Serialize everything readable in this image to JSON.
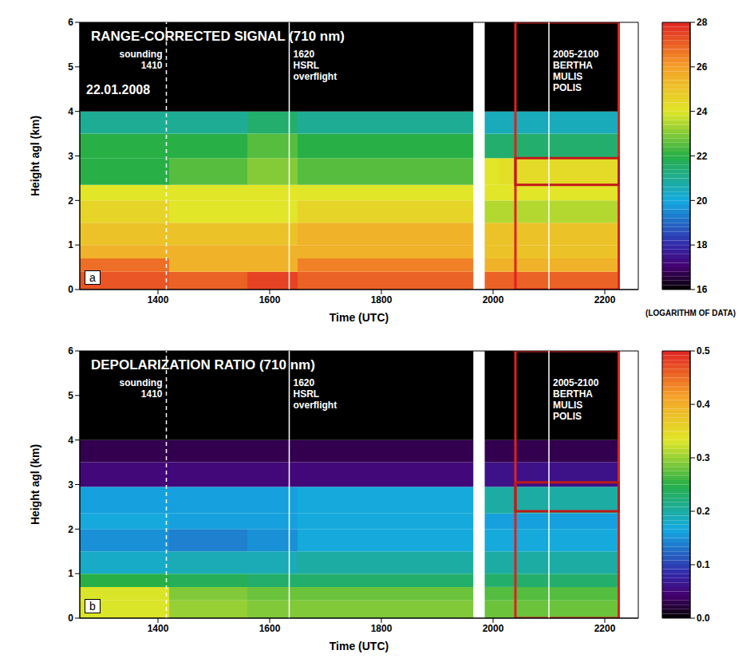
{
  "chart_data": [
    {
      "type": "heatmap",
      "panel": "a",
      "title": "RANGE-CORRECTED SIGNAL (710 nm)",
      "annotation": "22.01.2008",
      "x_label": "Time (UTC)",
      "y_label": "Height agl (km)",
      "xlim": [
        1260,
        2260
      ],
      "xticks": [
        1400,
        1600,
        1800,
        2000,
        2200
      ],
      "ylim": [
        0,
        6
      ],
      "yticks": [
        0,
        1,
        2,
        3,
        4,
        5,
        6
      ],
      "grid": false,
      "x_edges": [
        1260,
        1420,
        1560,
        1650,
        1965,
        1985,
        2010,
        2040,
        2225
      ],
      "y_edges": [
        0,
        0.4,
        0.7,
        1.0,
        1.5,
        2.0,
        2.35,
        2.95,
        3.5,
        4.0,
        6.0
      ],
      "cells": [
        [
          27.2,
          27,
          27.5,
          27,
          null,
          27,
          27,
          27
        ],
        [
          26.8,
          25.5,
          25.5,
          26.5,
          null,
          25.5,
          25.5,
          25.5
        ],
        [
          25.5,
          25.5,
          25.5,
          25.5,
          null,
          25,
          25,
          25
        ],
        [
          25,
          25,
          25,
          25.5,
          null,
          25,
          25,
          25
        ],
        [
          24.5,
          24,
          24,
          24.5,
          null,
          23.5,
          23.5,
          23.5
        ],
        [
          24,
          24,
          24,
          24,
          null,
          24,
          24,
          24
        ],
        [
          22,
          22.5,
          23,
          22.5,
          null,
          24,
          24.2,
          24.3
        ],
        [
          22,
          22,
          22.5,
          22,
          null,
          21.5,
          21.5,
          21.5
        ],
        [
          21,
          21,
          21.5,
          21,
          null,
          20.5,
          20.5,
          20.5
        ],
        [
          16,
          16,
          16,
          16,
          null,
          16,
          16,
          16
        ]
      ],
      "colorbar": {
        "range": [
          16,
          28
        ],
        "ticks": [
          16,
          18,
          20,
          22,
          24,
          26,
          28
        ],
        "label": "(LOGARITHM OF DATA)"
      },
      "events": [
        {
          "x": 1415,
          "label": [
            "sounding",
            "1410"
          ],
          "line_style": "dashed"
        },
        {
          "x": 1635,
          "label": [
            "1620",
            "HSRL",
            "overflight"
          ],
          "line_style": "solid"
        },
        {
          "x": 2100,
          "label": [
            "2005-2100",
            "BERTHA",
            "MULIS",
            "POLIS"
          ],
          "line_style": "solid"
        }
      ],
      "highlight_boxes": [
        {
          "x": [
            2040,
            2225
          ],
          "y": [
            0,
            6
          ],
          "color": "#e02020"
        },
        {
          "x": [
            2040,
            2225
          ],
          "y": [
            2.35,
            2.95
          ],
          "color": "#c01818"
        }
      ]
    },
    {
      "type": "heatmap",
      "panel": "b",
      "title": "DEPOLARIZATION RATIO (710 nm)",
      "x_label": "Time (UTC)",
      "y_label": "Height agl (km)",
      "xlim": [
        1260,
        2260
      ],
      "xticks": [
        1400,
        1600,
        1800,
        2000,
        2200
      ],
      "ylim": [
        0,
        6
      ],
      "yticks": [
        0,
        1,
        2,
        3,
        4,
        5,
        6
      ],
      "grid": false,
      "x_edges": [
        1260,
        1420,
        1560,
        1650,
        1965,
        1985,
        2010,
        2040,
        2225
      ],
      "y_edges": [
        0,
        0.4,
        0.7,
        1.0,
        1.5,
        2.0,
        2.35,
        2.95,
        3.5,
        4.0,
        6.0
      ],
      "cells": [
        [
          0.33,
          0.3,
          0.29,
          0.29,
          null,
          0.28,
          0.28,
          0.28
        ],
        [
          0.33,
          0.29,
          0.28,
          0.28,
          null,
          0.27,
          0.27,
          0.27
        ],
        [
          0.25,
          0.24,
          0.23,
          0.23,
          null,
          0.23,
          0.23,
          0.23
        ],
        [
          0.18,
          0.19,
          0.19,
          0.2,
          null,
          0.2,
          0.2,
          0.2
        ],
        [
          0.15,
          0.14,
          0.15,
          0.17,
          null,
          0.17,
          0.17,
          0.17
        ],
        [
          0.17,
          0.16,
          0.16,
          0.17,
          null,
          0.16,
          0.16,
          0.16
        ],
        [
          0.16,
          0.16,
          0.16,
          0.17,
          null,
          0.2,
          0.2,
          0.2
        ],
        [
          0.05,
          0.05,
          0.05,
          0.05,
          null,
          0.06,
          0.06,
          0.06
        ],
        [
          0.03,
          0.03,
          0.03,
          0.03,
          null,
          0.03,
          0.03,
          0.03
        ],
        [
          0,
          0,
          0,
          0,
          null,
          0,
          0,
          0
        ]
      ],
      "colorbar": {
        "range": [
          0,
          0.5
        ],
        "ticks": [
          {
            "value": 0,
            "label": "0.0"
          },
          0.1,
          0.2,
          0.3,
          0.4,
          0.5
        ]
      },
      "events": [
        {
          "x": 1415,
          "label": [
            "sounding",
            "1410"
          ],
          "line_style": "dashed"
        },
        {
          "x": 1635,
          "label": [
            "1620",
            "HSRL",
            "overflight"
          ],
          "line_style": "solid"
        },
        {
          "x": 2100,
          "label": [
            "2005-2100",
            "BERTHA",
            "MULIS",
            "POLIS"
          ],
          "line_style": "solid"
        }
      ],
      "highlight_boxes": [
        {
          "x": [
            2040,
            2225
          ],
          "y": [
            0,
            6
          ],
          "color": "#e02020"
        },
        {
          "x": [
            2040,
            2225
          ],
          "y": [
            2.4,
            3.05
          ],
          "color": "#c01818"
        }
      ]
    }
  ]
}
